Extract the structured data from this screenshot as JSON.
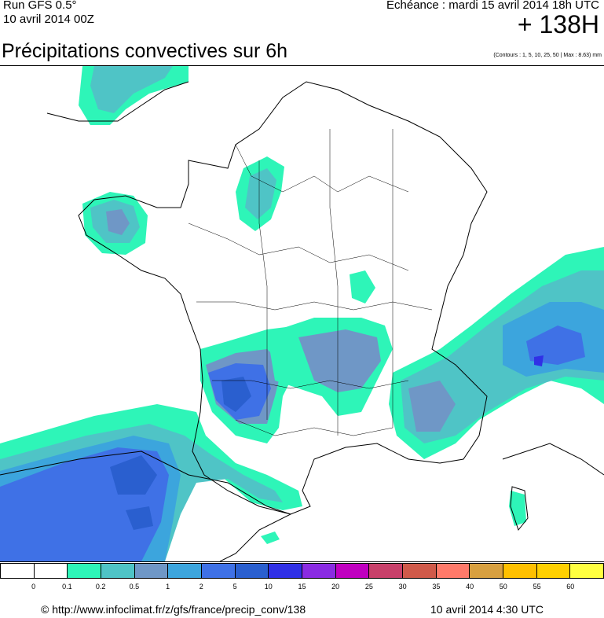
{
  "header": {
    "run": "Run GFS 0.5°",
    "run_date": "10 avril 2014 00Z",
    "echeance": "Echéance : mardi 15 avril 2014 18h UTC",
    "lead": "+ 138H"
  },
  "title": "Précipitations convectives sur 6h",
  "contours_note": "(Contours : 1, 5, 10, 25, 50 | Max : 8.63) mm",
  "map": {
    "region": "France",
    "colors": {
      "light": "#2ef5b8",
      "mid": "#4fc4c6",
      "slate": "#6f97c6",
      "sky": "#3ca5dd",
      "blue": "#3f71e6",
      "deep": "#2a5fcf",
      "land_bg": "#ffffff",
      "border": "#000000"
    }
  },
  "legend": {
    "colors": [
      "#ffffff",
      "#ffffff",
      "#2ef5b8",
      "#4fc4c6",
      "#6f97c6",
      "#3ca5dd",
      "#3f71e6",
      "#2a5fcf",
      "#3030e6",
      "#8a2be2",
      "#c000c0",
      "#c8406a",
      "#d05a4a",
      "#ff7a6a",
      "#d8a040",
      "#ffc000",
      "#ffd000",
      "#ffff40"
    ],
    "ticks": [
      "0",
      "0.1",
      "0.2",
      "0.5",
      "1",
      "2",
      "5",
      "10",
      "15",
      "20",
      "25",
      "30",
      "35",
      "40",
      "50",
      "55",
      "60"
    ]
  },
  "footer": {
    "source": "© http://www.infoclimat.fr/z/gfs/france/precip_conv/138",
    "generated": "10 avril 2014  4:30 UTC"
  }
}
